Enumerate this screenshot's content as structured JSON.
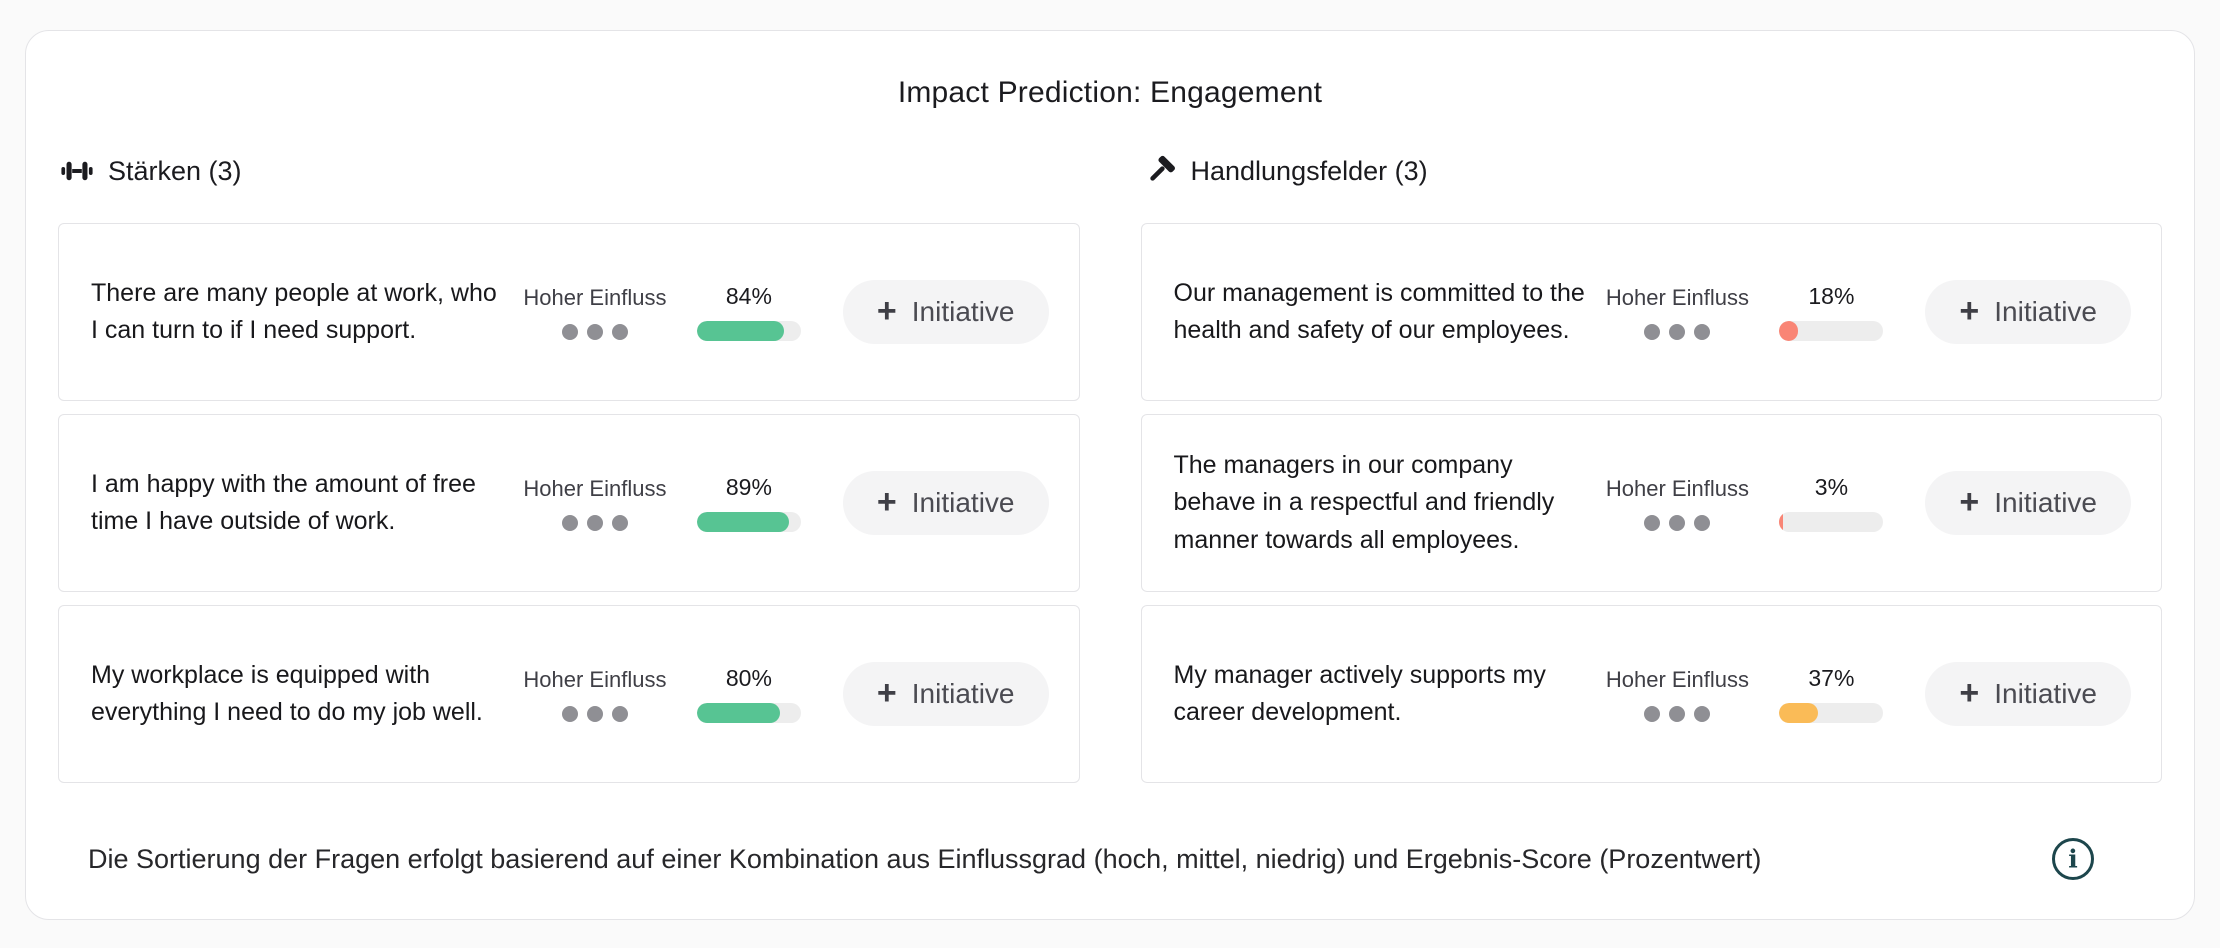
{
  "page": {
    "title": "Impact Prediction: Engagement"
  },
  "sections": {
    "strengths": {
      "icon": "dumbbell-icon",
      "title": "Stärken (3)",
      "items": [
        {
          "statement": "There are many people at work, who I can turn to if I need support.",
          "influence_label": "Hoher Einfluss",
          "influence_dots": 3,
          "score": "84%",
          "score_value": 84,
          "bar_color": "#57C493"
        },
        {
          "statement": "I am happy with the amount of free time I have outside of work.",
          "influence_label": "Hoher Einfluss",
          "influence_dots": 3,
          "score": "89%",
          "score_value": 89,
          "bar_color": "#57C493"
        },
        {
          "statement": "My workplace is equipped with everything I need to do my job well.",
          "influence_label": "Hoher Einfluss",
          "influence_dots": 3,
          "score": "80%",
          "score_value": 80,
          "bar_color": "#57C493"
        }
      ]
    },
    "action_fields": {
      "icon": "hammer-icon",
      "title": "Handlungsfelder (3)",
      "items": [
        {
          "statement": "Our management is committed to the health and safety of our employees.",
          "influence_label": "Hoher Einfluss",
          "influence_dots": 3,
          "score": "18%",
          "score_value": 18,
          "bar_color": "#F98575"
        },
        {
          "statement": "The managers in our company behave in a respectful and friendly manner towards all employees.",
          "influence_label": "Hoher Einfluss",
          "influence_dots": 3,
          "score": "3%",
          "score_value": 3,
          "bar_color": "#F98575"
        },
        {
          "statement": "My manager actively supports my career development.",
          "influence_label": "Hoher Einfluss",
          "influence_dots": 3,
          "score": "37%",
          "score_value": 37,
          "bar_color": "#FABB57"
        }
      ]
    }
  },
  "card": {
    "plus": "+",
    "add_initiative_label": "Initiative"
  },
  "footer": {
    "note": "Die Sortierung der Fragen erfolgt basierend auf einer Kombination aus Einflussgrad (hoch, mittel, niedrig) und Ergebnis-Score (Prozentwert)",
    "info_icon": "info-icon"
  },
  "colors": {
    "positive_bar": "#57C493",
    "negative_bar": "#F98575",
    "warning_bar": "#FABB57",
    "bar_track": "#EDEDED",
    "dot": "#8F8F94",
    "info_icon": "#1D464C"
  }
}
